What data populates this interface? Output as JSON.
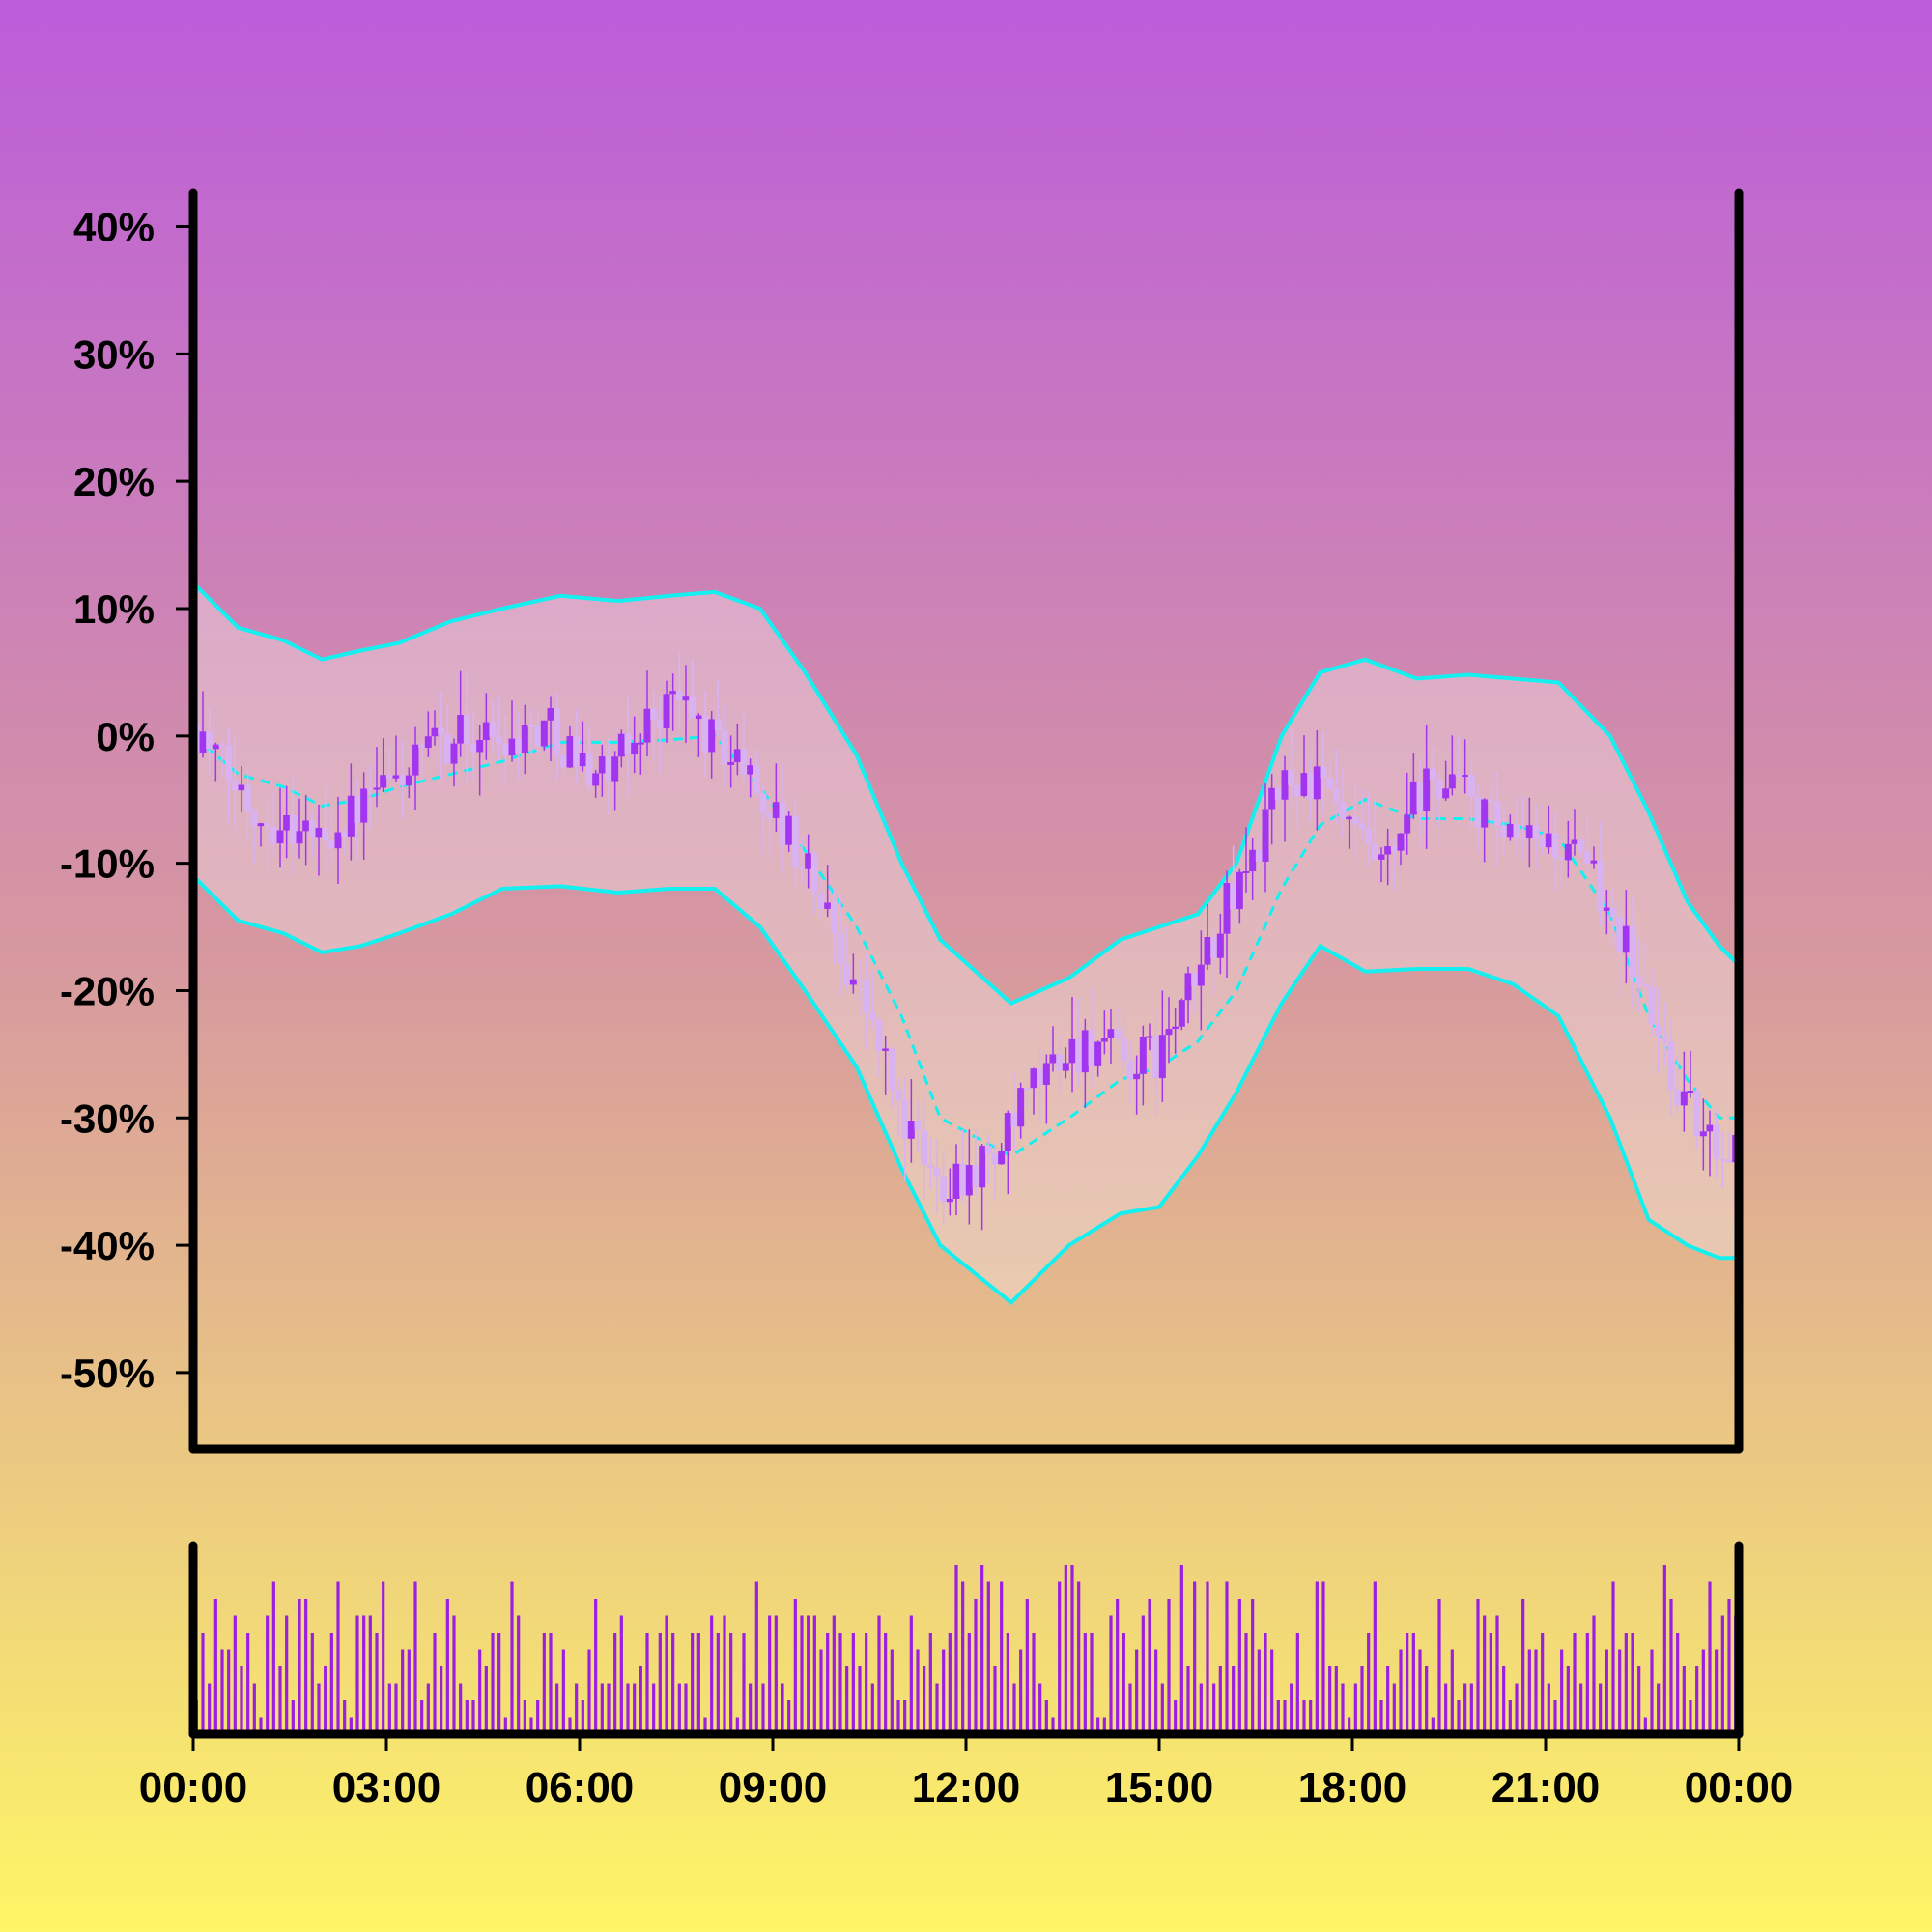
{
  "chart_data": {
    "type": "candlestick",
    "title": "",
    "xlabel": "",
    "ylabel": "",
    "x_tick_labels": [
      "00:00",
      "03:00",
      "06:00",
      "09:00",
      "12:00",
      "15:00",
      "18:00",
      "21:00",
      "00:00"
    ],
    "y_tick_labels": [
      "40%",
      "30%",
      "20%",
      "10%",
      "0%",
      "-10%",
      "-20%",
      "-30%",
      "-40%",
      "-50%"
    ],
    "y_ticks": [
      40,
      30,
      20,
      10,
      0,
      -10,
      -20,
      -30,
      -40,
      -50
    ],
    "ylim": [
      -56,
      43
    ],
    "xlim_hours": [
      0,
      24
    ],
    "grid": false,
    "legend": "none",
    "colors": {
      "candle_up": "#a235f0",
      "candle_down": "#d9b2f2",
      "band_line": "#14f0f0",
      "band_fill": "#f2e6e6",
      "volume": "#9b1fe0",
      "axes": "#000000"
    },
    "ohlc_anchors_hours": [
      0,
      0.5,
      1,
      1.5,
      2,
      2.5,
      3,
      3.5,
      4,
      4.5,
      5,
      5.5,
      6,
      6.5,
      7,
      7.5,
      8,
      8.5,
      9,
      9.5,
      10,
      10.5,
      11,
      11.5,
      12,
      12.5,
      13,
      13.5,
      14,
      14.5,
      15,
      15.5,
      16,
      16.5,
      17,
      17.5,
      18,
      18.5,
      19,
      19.5,
      20,
      20.5,
      21,
      21.5,
      22,
      22.5,
      23,
      23.5,
      24
    ],
    "close_trend": [
      1,
      -3,
      -6,
      -7,
      -8,
      -6,
      -4,
      -2,
      0,
      0,
      0,
      1,
      -2,
      -3,
      1,
      3,
      0,
      -2,
      -6,
      -10,
      -16,
      -22,
      -30,
      -35,
      -34,
      -33,
      -28,
      -25,
      -24,
      -26,
      -25,
      -20,
      -14,
      -9,
      -3,
      -4,
      -8,
      -11,
      -5,
      -3,
      -6,
      -9,
      -8,
      -10,
      -13,
      -20,
      -27,
      -32,
      -32
    ],
    "series": [
      {
        "name": "upper band",
        "values": [
          12,
          8.5,
          7.5,
          6,
          6.7,
          7.3,
          9,
          10,
          11,
          10.6,
          11,
          11.3,
          10,
          5,
          -1.5,
          -10,
          -16,
          -21,
          -19,
          -16,
          -15,
          -14,
          -10,
          0,
          5,
          6,
          4.5,
          4.8,
          4.5,
          4.2,
          0,
          -6,
          -13,
          -16.5,
          -18
        ]
      },
      {
        "name": "middle band",
        "values": [
          0,
          -3,
          -4,
          -5.5,
          -5,
          -4,
          -3,
          -2,
          -0.5,
          -0.5,
          -0.3,
          0,
          -4,
          -9,
          -15,
          -22,
          -30,
          -33,
          -30,
          -27,
          -26,
          -24,
          -20,
          -12,
          -7,
          -5,
          -6.5,
          -6.5,
          -7,
          -8,
          -14,
          -22,
          -27,
          -30,
          -30
        ]
      },
      {
        "name": "lower band",
        "values": [
          -11,
          -14.5,
          -15.5,
          -17,
          -16.5,
          -15.5,
          -14,
          -12,
          -11.8,
          -12.3,
          -12,
          -12,
          -15,
          -20,
          -26,
          -34,
          -40,
          -44.5,
          -40,
          -37.5,
          -37,
          -33,
          -28,
          -21,
          -16.5,
          -18.5,
          -18.3,
          -18.3,
          -19.5,
          -22,
          -30,
          -38,
          -40,
          -41,
          -41
        ]
      }
    ],
    "band_x_hours": [
      0,
      0.7,
      1.4,
      2,
      2.6,
      3.2,
      4,
      4.8,
      5.7,
      6.6,
      7.4,
      8.1,
      8.8,
      9.5,
      10.3,
      11,
      11.6,
      12.7,
      13.6,
      14.4,
      15,
      15.6,
      16.2,
      16.9,
      17.5,
      18.2,
      19,
      19.8,
      20.5,
      21.2,
      22,
      22.6,
      23.2,
      23.7,
      24
    ],
    "volume_values": [
      2,
      6,
      3,
      8,
      5,
      5,
      7,
      4,
      6,
      3,
      1,
      7,
      9,
      4,
      7,
      2,
      8,
      8,
      6,
      3,
      4,
      6,
      9,
      2,
      1,
      7,
      7,
      7,
      6,
      9,
      3,
      3,
      5,
      5,
      9,
      2,
      3,
      6,
      4,
      8,
      7,
      3,
      2,
      2,
      5,
      4,
      6,
      6,
      1,
      9,
      7,
      2,
      1,
      2,
      6,
      6,
      3,
      5,
      1,
      3,
      2,
      5,
      8,
      3,
      3,
      6,
      7,
      3,
      3,
      4,
      6,
      3,
      6,
      7,
      6,
      3,
      3,
      6,
      6,
      1,
      7,
      6,
      7,
      6,
      1,
      6,
      3,
      9,
      3,
      7,
      7,
      3,
      2,
      8,
      7,
      7,
      7,
      5,
      6,
      7,
      6,
      4,
      6,
      4,
      6,
      3,
      7,
      6,
      5,
      2,
      2,
      7,
      5,
      4,
      6,
      3,
      5,
      6,
      10,
      9,
      6,
      8,
      10,
      9,
      4,
      9,
      6,
      3,
      5,
      8,
      6,
      3,
      2,
      1,
      9,
      10,
      10,
      9,
      6,
      6,
      1,
      1,
      7,
      8,
      6,
      3,
      5,
      7,
      8,
      5,
      3,
      8,
      2,
      10,
      4,
      9,
      3,
      9,
      3,
      4,
      9,
      4,
      8,
      6,
      8,
      5,
      6,
      5,
      2,
      2,
      3,
      6,
      2,
      2,
      9,
      9,
      4,
      4,
      3,
      1,
      3,
      4,
      6,
      9,
      2,
      4,
      3,
      5,
      6,
      6,
      5,
      4,
      1,
      8,
      3,
      5,
      2,
      3,
      3,
      8,
      7,
      6,
      7,
      4,
      2,
      3,
      8,
      5,
      5,
      6,
      3,
      2,
      5,
      4,
      6,
      3,
      6,
      7,
      3,
      5,
      9,
      5,
      6,
      6,
      4,
      1,
      5,
      3,
      10,
      8,
      6,
      4,
      2,
      4,
      5,
      9,
      5,
      7,
      8,
      7
    ]
  }
}
